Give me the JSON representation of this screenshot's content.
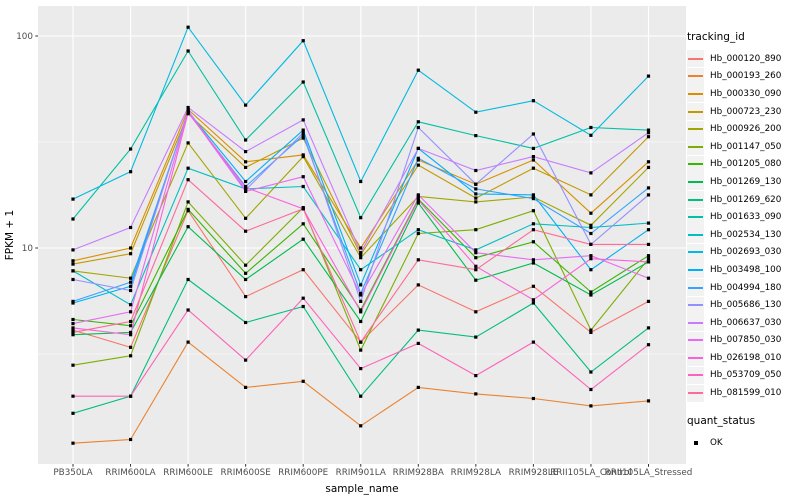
{
  "figure": {
    "background": "#FFFFFF",
    "panel_background": "#EBEBEB",
    "grid_color": "#FFFFFF",
    "tick_mark_color": "#333333",
    "tick_label_color": "#4D4D4D",
    "point_color": "#000000"
  },
  "chart_data": {
    "type": "line",
    "title": "",
    "xlabel": "sample_name",
    "ylabel": "FPKM + 1",
    "y_scale": "log10",
    "y_tick_labels": [
      "10",
      "100"
    ],
    "y_ticks": [
      10,
      100
    ],
    "y_minor_gridlines": [
      3.162,
      31.623
    ],
    "ylim": [
      1.15,
      138
    ],
    "grid": true,
    "legend_position": "right",
    "categories": [
      "PB350LA",
      "RRIM600LA",
      "RRIM600LE",
      "RRIM600SE",
      "RRIM600PE",
      "RRIM901LA",
      "RRIM928BA",
      "RRIM928LA",
      "RRIM928LE",
      "RRII105LA_Control",
      "RRII105LA_Stressed"
    ],
    "series": [
      {
        "name": "Hb_000120_890",
        "color": "#F8766D",
        "values": [
          4.1,
          3.4,
          15,
          5.9,
          7.9,
          3.6,
          6.7,
          5.0,
          6.6,
          4.0,
          5.6
        ]
      },
      {
        "name": "Hb_000193_260",
        "color": "#EA8331",
        "values": [
          1.2,
          1.25,
          3.6,
          2.2,
          2.35,
          1.45,
          2.2,
          2.05,
          1.95,
          1.8,
          1.9
        ]
      },
      {
        "name": "Hb_000330_090",
        "color": "#D89000",
        "values": [
          8.7,
          10,
          45,
          25.5,
          27.5,
          10,
          26,
          20,
          26,
          14.6,
          25.5
        ]
      },
      {
        "name": "Hb_000723_230",
        "color": "#C09B00",
        "values": [
          8.4,
          9.4,
          43,
          24,
          33,
          9.3,
          24.6,
          17.2,
          23.8,
          17.8,
          33.5
        ]
      },
      {
        "name": "Hb_000926_200",
        "color": "#A3A500",
        "values": [
          7.8,
          7.2,
          31.3,
          13.8,
          27,
          9.0,
          17.5,
          16.5,
          17.4,
          12.8,
          24
        ]
      },
      {
        "name": "Hb_001147_050",
        "color": "#7CAE00",
        "values": [
          2.8,
          3.1,
          16.5,
          8.3,
          15.5,
          3.3,
          11.7,
          12.2,
          15,
          4.1,
          8.9
        ]
      },
      {
        "name": "Hb_001205_080",
        "color": "#39B600",
        "values": [
          4.6,
          4.3,
          15.2,
          7.6,
          13,
          5.1,
          17,
          9.0,
          10.7,
          6.2,
          9.2
        ]
      },
      {
        "name": "Hb_001269_130",
        "color": "#00BB4E",
        "values": [
          3.9,
          4.0,
          12.6,
          7.1,
          11,
          4.5,
          16.3,
          7.05,
          8.5,
          6.0,
          8.6
        ]
      },
      {
        "name": "Hb_001269_620",
        "color": "#00BF7D",
        "values": [
          1.66,
          2.0,
          7.1,
          4.45,
          5.3,
          2.0,
          4.1,
          3.8,
          5.5,
          2.6,
          4.2
        ]
      },
      {
        "name": "Hb_001633_090",
        "color": "#00C1A3",
        "values": [
          13.7,
          29.3,
          85,
          32.3,
          60.7,
          13.9,
          39.4,
          33.9,
          29.5,
          37,
          36
        ]
      },
      {
        "name": "Hb_002534_130",
        "color": "#00BFC4",
        "values": [
          7.8,
          5.4,
          23.8,
          19,
          19.5,
          7.9,
          12.2,
          9.8,
          13,
          12.5,
          13.1
        ]
      },
      {
        "name": "Hb_002693_030",
        "color": "#00BAE0",
        "values": [
          17,
          22.9,
          110,
          47.2,
          95,
          20.6,
          69,
          43.7,
          49.5,
          34,
          64.7
        ]
      },
      {
        "name": "Hb_003498_100",
        "color": "#00B0F6",
        "values": [
          5.5,
          6.6,
          44,
          20.6,
          36,
          6.7,
          29.5,
          18,
          17.8,
          7.9,
          12.2
        ]
      },
      {
        "name": "Hb_004994_180",
        "color": "#35A2FF",
        "values": [
          5.6,
          6.9,
          43.5,
          19.5,
          34,
          6.1,
          26.5,
          19,
          17.1,
          11.7,
          19.2
        ]
      },
      {
        "name": "Hb_005686_130",
        "color": "#9590FF",
        "values": [
          7.1,
          6.3,
          44.5,
          18.8,
          35,
          5.6,
          37,
          20,
          34.5,
          10.4,
          17.8
        ]
      },
      {
        "name": "Hb_006637_030",
        "color": "#C77CFF",
        "values": [
          9.8,
          12.5,
          46,
          28.5,
          40.2,
          9.5,
          29.5,
          23.2,
          27,
          22.6,
          35
        ]
      },
      {
        "name": "Hb_007850_030",
        "color": "#E76BF3",
        "values": [
          4.4,
          5.0,
          44,
          18.5,
          21.7,
          6.0,
          17.8,
          9.5,
          8.8,
          9.2,
          7.2
        ]
      },
      {
        "name": "Hb_026198_010",
        "color": "#FA62DB",
        "values": [
          4.2,
          3.9,
          43.5,
          19.3,
          15.3,
          5.0,
          16.8,
          8.2,
          5.7,
          8.9,
          8.6
        ]
      },
      {
        "name": "Hb_053709_050",
        "color": "#FF62BC",
        "values": [
          2.0,
          2.0,
          5.1,
          2.96,
          5.8,
          2.7,
          3.55,
          2.5,
          3.6,
          2.15,
          3.5
        ]
      },
      {
        "name": "Hb_081599_010",
        "color": "#FF6A98",
        "values": [
          4.0,
          4.5,
          21,
          12,
          15.3,
          3.6,
          8.8,
          7.9,
          12.2,
          10.4,
          10.4
        ]
      }
    ]
  },
  "legend": {
    "tracking_title": "tracking_id",
    "quant_title": "quant_status",
    "quant_items": [
      {
        "label": "OK",
        "marker": "black-square"
      }
    ]
  }
}
